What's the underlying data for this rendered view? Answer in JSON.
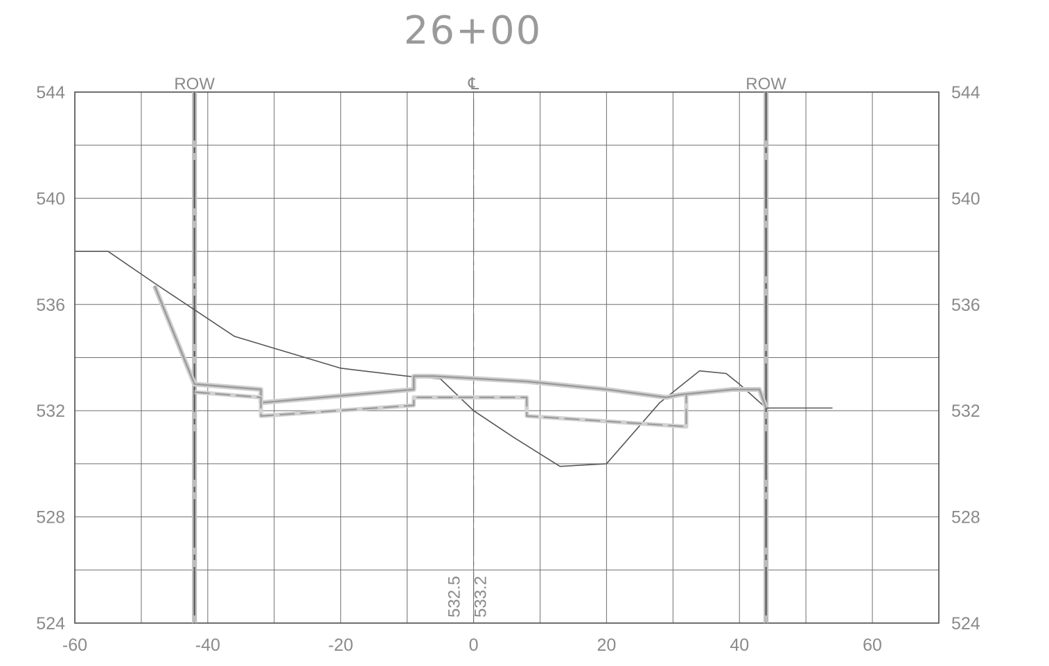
{
  "title": "26+00",
  "markers": [
    {
      "label": "ROW",
      "x": -42
    },
    {
      "label": "℄",
      "x": 0
    },
    {
      "label": "ROW",
      "x": 44
    }
  ],
  "elevation_labels": [
    "532.5",
    "533.2"
  ],
  "colors": {
    "grid": "#6e6e6e",
    "existing": "#555555",
    "proposed": "#9a9a9a",
    "text": "#8a8a8a"
  },
  "chart_data": {
    "type": "line",
    "title": "26+00",
    "xlabel": "",
    "ylabel": "",
    "xlim": [
      -60,
      70
    ],
    "ylim": [
      524,
      544
    ],
    "x_ticks": [
      -60,
      -40,
      -20,
      0,
      20,
      40,
      60
    ],
    "x_tick_labels": [
      "-60",
      "-40",
      "-20",
      "0",
      "20",
      "40",
      "60"
    ],
    "y_ticks": [
      524,
      528,
      532,
      536,
      540,
      544
    ],
    "y_tick_labels": [
      "524",
      "528",
      "532",
      "536",
      "540",
      "544"
    ],
    "grid": true,
    "grid_x_step": 10,
    "grid_y_step": 2,
    "series": [
      {
        "name": "",
        "style": "existing-ground",
        "x": [
          -60,
          -55,
          -48,
          -42,
          -36,
          -20,
          -10,
          -5,
          0,
          6,
          13,
          20,
          28,
          34,
          38,
          40,
          44,
          50,
          54
        ],
        "y": [
          538,
          538,
          536.8,
          535.8,
          534.8,
          533.6,
          533.3,
          533.2,
          532,
          531,
          529.9,
          530,
          532.3,
          533.5,
          533.4,
          533,
          532.1,
          532.1,
          532.1
        ]
      },
      {
        "name": "",
        "style": "proposed-top",
        "x": [
          -48,
          -42,
          -32,
          -32,
          -9,
          -9,
          -6,
          8,
          20,
          29,
          31,
          39,
          43,
          44
        ],
        "y": [
          536.7,
          533,
          532.8,
          532.3,
          532.8,
          533.3,
          533.3,
          533.1,
          532.8,
          532.5,
          532.6,
          532.8,
          532.8,
          532.1
        ]
      },
      {
        "name": "",
        "style": "proposed-bottom",
        "x": [
          -42,
          -32,
          -32,
          -9,
          -9,
          8,
          8,
          20,
          32,
          32
        ],
        "y": [
          532.7,
          532.5,
          531.8,
          532.2,
          532.5,
          532.5,
          531.8,
          531.6,
          531.4,
          532.6
        ]
      }
    ]
  }
}
